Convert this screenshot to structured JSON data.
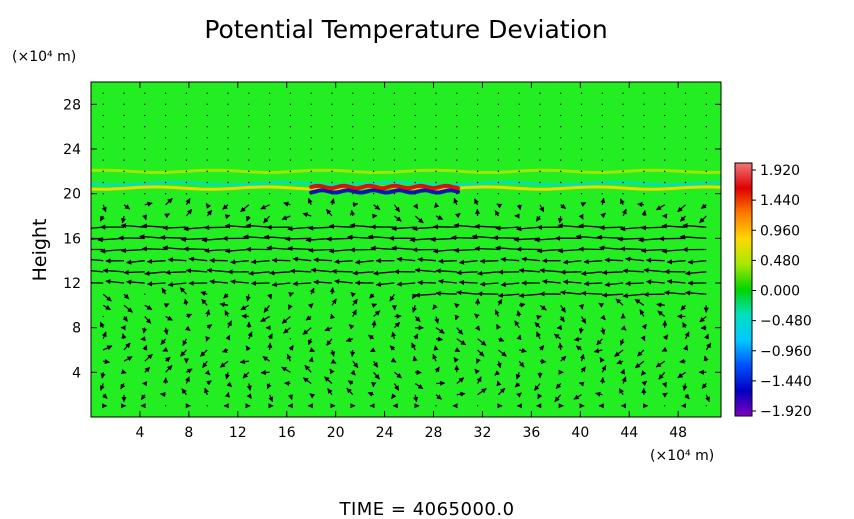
{
  "chart_data": {
    "type": "heatmap",
    "title": "Potential Temperature Deviation",
    "ylabel": "Height",
    "x_unit": "(×10⁴ m)",
    "y_unit": "(×10⁴ m)",
    "x_ticks": [
      4,
      8,
      12,
      16,
      20,
      24,
      28,
      32,
      36,
      40,
      44,
      48
    ],
    "y_ticks": [
      4,
      8,
      12,
      16,
      20,
      24,
      28
    ],
    "xlim": [
      0,
      51.5
    ],
    "ylim": [
      0,
      30
    ],
    "colorbar": {
      "ticks": [
        "1.920",
        "1.440",
        "0.960",
        "0.480",
        "0.000",
        "−0.480",
        "−0.960",
        "−1.440",
        "−1.920"
      ],
      "range": [
        -1.92,
        1.92
      ],
      "colors": [
        "#f07878",
        "#e00000",
        "#ff7a00",
        "#ffd800",
        "#a8e800",
        "#00d400",
        "#00e0c0",
        "#00c8ff",
        "#0050ff",
        "#0000c0",
        "#8000c0"
      ]
    },
    "field_background": "#22ee22",
    "anomaly_bands": [
      {
        "y": 20.9,
        "x_range": [
          0,
          51.5
        ],
        "sign": "negative",
        "amplitude": -0.5
      },
      {
        "y": 20.5,
        "x_range": [
          0,
          51.5
        ],
        "sign": "positive",
        "amplitude": 0.9
      },
      {
        "y": 20.2,
        "x_range": [
          18,
          30
        ],
        "sign": "negative",
        "amplitude": -1.6
      },
      {
        "y": 20.6,
        "x_range": [
          18,
          30
        ],
        "sign": "positive",
        "amplitude": 1.5
      },
      {
        "y": 22.0,
        "x_range": [
          0,
          51.5
        ],
        "sign": "positive",
        "amplitude": 0.3
      }
    ],
    "wind_jets": [
      {
        "y": 17.2,
        "x_range": [
          1,
          51
        ],
        "strength": 0.9
      },
      {
        "y": 16.0,
        "x_range": [
          1,
          51
        ],
        "strength": 1.0
      },
      {
        "y": 15.0,
        "x_range": [
          1,
          51
        ],
        "strength": 0.9
      },
      {
        "y": 14.0,
        "x_range": [
          1,
          51
        ],
        "strength": 0.7
      },
      {
        "y": 13.0,
        "x_range": [
          1,
          51
        ],
        "strength": 0.8
      },
      {
        "y": 12.0,
        "x_range": [
          1,
          51
        ],
        "strength": 0.7
      },
      {
        "y": 11.0,
        "x_range": [
          28,
          51
        ],
        "strength": 0.8
      }
    ],
    "time_label": "TIME",
    "time_value": "4065000.0"
  }
}
